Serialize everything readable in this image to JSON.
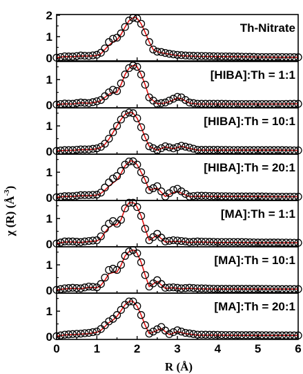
{
  "chart_data": {
    "type": "line",
    "xlabel_main": "R (Å)",
    "ylabel_main": "χ (R) (Å",
    "ylabel_exp": "-3",
    "ylabel_close": ")",
    "xlim": [
      0,
      6
    ],
    "x_ticks": [
      "0",
      "1",
      "2",
      "3",
      "4",
      "5",
      "6"
    ],
    "grid": false,
    "panels": [
      {
        "label": "Th-Nitrate",
        "ylim": [
          0,
          2
        ],
        "y_ticks": [
          "0",
          "1",
          "2"
        ],
        "x": [
          0,
          0.2,
          0.4,
          0.6,
          0.8,
          1.0,
          1.1,
          1.2,
          1.3,
          1.4,
          1.5,
          1.6,
          1.7,
          1.8,
          1.9,
          1.95,
          2.0,
          2.1,
          2.2,
          2.3,
          2.4,
          2.5,
          2.6,
          2.8,
          3.0,
          3.2,
          3.5,
          4,
          4.5,
          5,
          5.5,
          6
        ],
        "expt": [
          0.02,
          0.08,
          0.07,
          0.12,
          0.1,
          0.15,
          0.25,
          0.45,
          0.75,
          0.9,
          0.95,
          1.15,
          1.45,
          1.75,
          1.88,
          1.9,
          1.85,
          1.6,
          1.2,
          0.75,
          0.4,
          0.3,
          0.28,
          0.2,
          0.15,
          0.12,
          0.1,
          0.08,
          0.07,
          0.05,
          0.05,
          0.04
        ],
        "fit": [
          0.02,
          0.07,
          0.06,
          0.1,
          0.09,
          0.12,
          0.2,
          0.4,
          0.6,
          0.75,
          0.85,
          1.1,
          1.45,
          1.75,
          1.88,
          1.9,
          1.85,
          1.6,
          1.2,
          0.75,
          0.4,
          0.3,
          0.25,
          0.18,
          0.12,
          0.1,
          0.08,
          0.07,
          0.06,
          0.05,
          0.04,
          0.04
        ]
      },
      {
        "label": "[HIBA]:Th = 1:1",
        "ylim": [
          0,
          1.6
        ],
        "y_ticks": [
          "0",
          "1"
        ],
        "x": [
          0,
          0.2,
          0.4,
          0.6,
          0.8,
          1.0,
          1.1,
          1.2,
          1.3,
          1.4,
          1.5,
          1.6,
          1.7,
          1.8,
          1.9,
          1.95,
          2.0,
          2.1,
          2.2,
          2.3,
          2.5,
          2.7,
          2.9,
          3.0,
          3.1,
          3.3,
          3.5,
          4,
          4.5,
          5,
          5.5,
          6
        ],
        "expt": [
          0.02,
          0.06,
          0.05,
          0.1,
          0.08,
          0.15,
          0.2,
          0.35,
          0.5,
          0.6,
          0.55,
          0.85,
          1.2,
          1.45,
          1.55,
          1.56,
          1.5,
          1.2,
          0.8,
          0.3,
          0.05,
          0.1,
          0.25,
          0.32,
          0.3,
          0.1,
          0.05,
          0.05,
          0.04,
          0.04,
          0.04,
          0.05
        ],
        "fit": [
          0.02,
          0.05,
          0.04,
          0.09,
          0.07,
          0.12,
          0.18,
          0.3,
          0.42,
          0.5,
          0.5,
          0.8,
          1.2,
          1.45,
          1.55,
          1.56,
          1.5,
          1.2,
          0.8,
          0.3,
          0.05,
          0.08,
          0.2,
          0.28,
          0.25,
          0.08,
          0.04,
          0.04,
          0.04,
          0.04,
          0.04,
          0.05
        ]
      },
      {
        "label": "[HIBA]:Th = 10:1",
        "ylim": [
          0,
          1.6
        ],
        "y_ticks": [
          "0",
          "1"
        ],
        "x": [
          0,
          0.2,
          0.4,
          0.6,
          0.8,
          1.0,
          1.1,
          1.2,
          1.3,
          1.4,
          1.5,
          1.6,
          1.7,
          1.8,
          1.85,
          1.9,
          2.0,
          2.1,
          2.2,
          2.3,
          2.5,
          2.7,
          2.9,
          3.1,
          3.3,
          3.5,
          4,
          4.5,
          5,
          5.5,
          6
        ],
        "expt": [
          0.02,
          0.05,
          0.05,
          0.08,
          0.08,
          0.12,
          0.18,
          0.3,
          0.5,
          0.75,
          1.0,
          1.25,
          1.45,
          1.52,
          1.53,
          1.5,
          1.3,
          0.95,
          0.55,
          0.2,
          0.05,
          0.2,
          0.12,
          0.22,
          0.15,
          0.06,
          0.06,
          0.05,
          0.05,
          0.05,
          0.04
        ],
        "fit": [
          0.02,
          0.04,
          0.04,
          0.07,
          0.07,
          0.1,
          0.16,
          0.28,
          0.48,
          0.74,
          1.0,
          1.25,
          1.45,
          1.52,
          1.53,
          1.5,
          1.3,
          0.95,
          0.55,
          0.2,
          0.05,
          0.18,
          0.1,
          0.2,
          0.12,
          0.05,
          0.05,
          0.05,
          0.05,
          0.05,
          0.04
        ]
      },
      {
        "label": "[HIBA]:Th = 20:1",
        "ylim": [
          0,
          1.6
        ],
        "y_ticks": [
          "0",
          "1"
        ],
        "x": [
          0,
          0.2,
          0.4,
          0.6,
          0.8,
          1.0,
          1.1,
          1.2,
          1.3,
          1.4,
          1.5,
          1.6,
          1.7,
          1.8,
          1.85,
          1.9,
          2.0,
          2.1,
          2.2,
          2.3,
          2.5,
          2.7,
          2.9,
          3.0,
          3.1,
          3.3,
          3.5,
          4,
          4.5,
          5,
          5.5,
          6
        ],
        "expt": [
          0.02,
          0.06,
          0.06,
          0.1,
          0.1,
          0.12,
          0.2,
          0.4,
          0.6,
          0.75,
          0.85,
          1.05,
          1.3,
          1.42,
          1.45,
          1.43,
          1.3,
          1.0,
          0.7,
          0.3,
          0.45,
          0.05,
          0.3,
          0.35,
          0.25,
          0.05,
          0.08,
          0.06,
          0.05,
          0.05,
          0.04,
          0.04
        ],
        "fit": [
          0.02,
          0.05,
          0.05,
          0.08,
          0.08,
          0.1,
          0.17,
          0.3,
          0.45,
          0.58,
          0.7,
          0.95,
          1.25,
          1.4,
          1.45,
          1.43,
          1.3,
          1.0,
          0.7,
          0.3,
          0.38,
          0.05,
          0.2,
          0.25,
          0.18,
          0.04,
          0.06,
          0.05,
          0.05,
          0.05,
          0.04,
          0.04
        ]
      },
      {
        "label": "[MA]:Th = 1:1",
        "ylim": [
          0,
          1.6
        ],
        "y_ticks": [
          "0",
          "1"
        ],
        "x": [
          0,
          0.2,
          0.4,
          0.6,
          0.8,
          1.0,
          1.1,
          1.2,
          1.3,
          1.4,
          1.5,
          1.6,
          1.7,
          1.8,
          1.9,
          1.95,
          2.0,
          2.1,
          2.2,
          2.3,
          2.5,
          2.7,
          2.9,
          3.1,
          3.3,
          3.5,
          4,
          4.5,
          5,
          5.5,
          6
        ],
        "expt": [
          0.02,
          0.1,
          0.1,
          0.08,
          0.12,
          0.15,
          0.3,
          0.6,
          0.8,
          0.9,
          0.8,
          0.95,
          1.4,
          1.62,
          1.62,
          1.58,
          1.45,
          1.1,
          0.6,
          0.15,
          0.4,
          0.1,
          0.15,
          0.12,
          0.08,
          0.1,
          0.08,
          0.08,
          0.06,
          0.06,
          0.05
        ],
        "fit": [
          0.02,
          0.08,
          0.08,
          0.06,
          0.1,
          0.12,
          0.22,
          0.45,
          0.65,
          0.75,
          0.75,
          0.95,
          1.4,
          1.62,
          1.62,
          1.58,
          1.45,
          1.1,
          0.6,
          0.15,
          0.35,
          0.08,
          0.1,
          0.1,
          0.06,
          0.08,
          0.06,
          0.06,
          0.05,
          0.05,
          0.05
        ]
      },
      {
        "label": "[MA]:Th = 10:1",
        "ylim": [
          0,
          1.6
        ],
        "y_ticks": [
          "0",
          "1"
        ],
        "x": [
          0,
          0.2,
          0.4,
          0.6,
          0.8,
          1.0,
          1.1,
          1.2,
          1.3,
          1.4,
          1.5,
          1.6,
          1.7,
          1.8,
          1.9,
          1.95,
          2.0,
          2.1,
          2.2,
          2.3,
          2.5,
          2.7,
          2.9,
          3.1,
          3.3,
          3.5,
          4,
          4.5,
          5,
          5.5,
          6
        ],
        "expt": [
          0.02,
          0.08,
          0.1,
          0.08,
          0.15,
          0.12,
          0.25,
          0.5,
          0.8,
          0.85,
          0.8,
          1.0,
          1.35,
          1.52,
          1.58,
          1.56,
          1.45,
          1.1,
          0.6,
          0.15,
          0.4,
          0.1,
          0.12,
          0.08,
          0.1,
          0.08,
          0.06,
          0.06,
          0.06,
          0.05,
          0.05
        ],
        "fit": [
          0.02,
          0.06,
          0.08,
          0.06,
          0.12,
          0.1,
          0.2,
          0.4,
          0.65,
          0.7,
          0.72,
          0.98,
          1.35,
          1.52,
          1.58,
          1.56,
          1.45,
          1.1,
          0.6,
          0.15,
          0.35,
          0.08,
          0.1,
          0.06,
          0.08,
          0.06,
          0.05,
          0.05,
          0.05,
          0.05,
          0.05
        ]
      },
      {
        "label": "[MA]:Th = 20:1",
        "ylim": [
          0,
          1.6
        ],
        "y_ticks": [
          "0",
          "1"
        ],
        "x": [
          0,
          0.2,
          0.4,
          0.6,
          0.8,
          1.0,
          1.1,
          1.2,
          1.3,
          1.4,
          1.5,
          1.6,
          1.7,
          1.8,
          1.85,
          1.9,
          2.0,
          2.1,
          2.2,
          2.3,
          2.4,
          2.6,
          2.8,
          3.0,
          3.2,
          3.5,
          4,
          4.5,
          5,
          5.5,
          6
        ],
        "expt": [
          0.02,
          0.08,
          0.1,
          0.12,
          0.15,
          0.2,
          0.3,
          0.45,
          0.6,
          0.7,
          0.85,
          1.05,
          1.25,
          1.38,
          1.4,
          1.38,
          1.2,
          0.85,
          0.45,
          0.12,
          0.2,
          0.38,
          0.1,
          0.25,
          0.15,
          0.08,
          0.07,
          0.06,
          0.06,
          0.05,
          0.05
        ],
        "fit": [
          0.02,
          0.07,
          0.08,
          0.1,
          0.12,
          0.17,
          0.25,
          0.4,
          0.55,
          0.65,
          0.8,
          1.02,
          1.25,
          1.38,
          1.4,
          1.38,
          1.2,
          0.85,
          0.45,
          0.12,
          0.18,
          0.32,
          0.08,
          0.2,
          0.12,
          0.06,
          0.06,
          0.05,
          0.05,
          0.05,
          0.05
        ]
      }
    ],
    "colors": {
      "expt_marker": "#000000",
      "fit_line": "#e01010",
      "axis": "#000000"
    }
  }
}
